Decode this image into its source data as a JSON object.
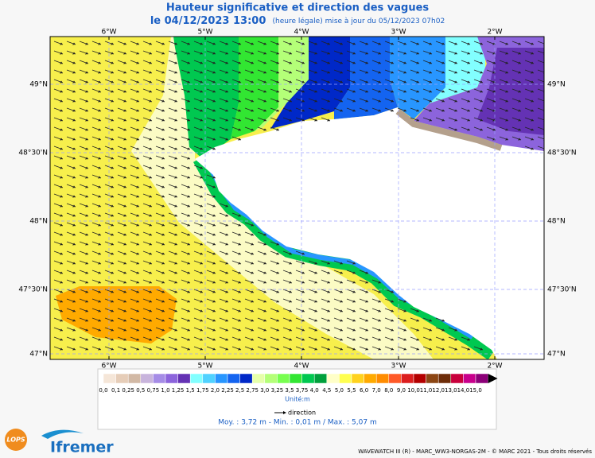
{
  "header": {
    "title": "Hauteur significative et direction des vagues",
    "date": "le 04/12/2023 13:00",
    "note": "(heure légale) mise à jour du 05/12/2023 07h02"
  },
  "map": {
    "lon_labels": [
      "6°W",
      "5°W",
      "4°W",
      "3°W",
      "2°W"
    ],
    "lat_labels": [
      "49°N",
      "48°30'N",
      "48°N",
      "47°30'N",
      "47°N"
    ]
  },
  "legend": {
    "labels": [
      "0,0",
      "0,1",
      "0,25",
      "0,5",
      "0,75",
      "1,0",
      "1,25",
      "1,5",
      "1,75",
      "2,0",
      "2,25",
      "2,5",
      "2,75",
      "3,0",
      "3,25",
      "3,5",
      "3,75",
      "4,0",
      "4,5",
      "5,0",
      "5,5",
      "6,0",
      "7,0",
      "8,0",
      "9,0",
      "10,0",
      "11,0",
      "12,0",
      "13,0",
      "14,0",
      "15,0"
    ],
    "colors": [
      "#f5e6d8",
      "#e6cdb8",
      "#d2b9a5",
      "#c8b4dc",
      "#a58ce6",
      "#8c64dc",
      "#6432b4",
      "#82ffff",
      "#50d2ff",
      "#2896ff",
      "#1464f0",
      "#0028c8",
      "#e6ffaa",
      "#b4ff78",
      "#78ff50",
      "#32e632",
      "#00c850",
      "#00a03c",
      "#ffffc8",
      "#ffff50",
      "#ffd21e",
      "#ffaa00",
      "#ff8c00",
      "#ff5a28",
      "#dc1e1e",
      "#b40000",
      "#8c4614",
      "#6e2d0a",
      "#c8003c",
      "#c8008c",
      "#8c0078"
    ],
    "unit": "Unité:m",
    "direction": "direction",
    "stats": "Moy. : 3,72 m  -  Min. : 0,01 m / Max. : 5,07 m"
  },
  "logos": {
    "lops": "LOPS",
    "ifremer": "Ifremer"
  },
  "footer": "WAVEWATCH III (R) - MARC_WW3-NORGAS-2M - © MARC 2021 - Tous droits réservés"
}
